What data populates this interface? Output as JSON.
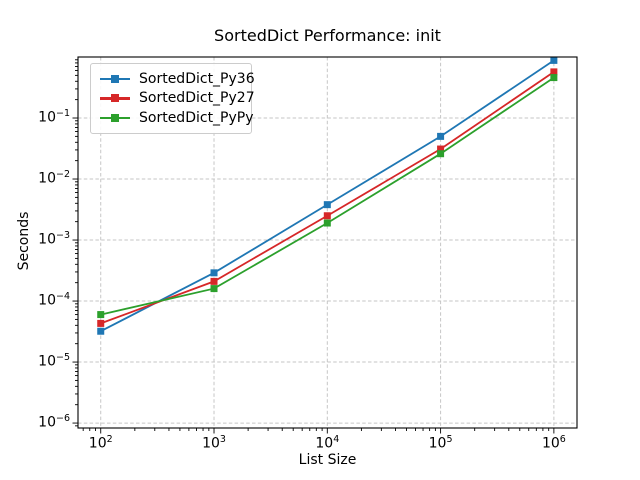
{
  "title": "SortedDict Performance: init",
  "chart_data": {
    "type": "line",
    "title": "SortedDict Performance: init",
    "xlabel": "List Size",
    "ylabel": "Seconds",
    "xscale": "log",
    "yscale": "log",
    "x": [
      100,
      1000,
      10000,
      100000,
      1000000
    ],
    "series": [
      {
        "name": "SortedDict_Py36",
        "color": "#1f77b4",
        "values": [
          3.2e-05,
          0.00029,
          0.0038,
          0.05,
          0.88
        ]
      },
      {
        "name": "SortedDict_Py27",
        "color": "#d62728",
        "values": [
          4.3e-05,
          0.00021,
          0.0025,
          0.031,
          0.57
        ]
      },
      {
        "name": "SortedDict_PyPy",
        "color": "#2ca02c",
        "values": [
          6e-05,
          0.00016,
          0.0019,
          0.026,
          0.46
        ]
      }
    ],
    "xlim": [
      63.0,
      1600000.0
    ],
    "ylim": [
      8.3e-07,
      1.0
    ],
    "x_tick_exponents": [
      2,
      3,
      4,
      5,
      6
    ],
    "y_tick_exponents": [
      -6,
      -5,
      -4,
      -3,
      -2,
      -1
    ],
    "grid": true,
    "grid_color": "#c6c6c6",
    "marker": "square",
    "legend_position": "upper-left",
    "frame_color": "#000000"
  }
}
